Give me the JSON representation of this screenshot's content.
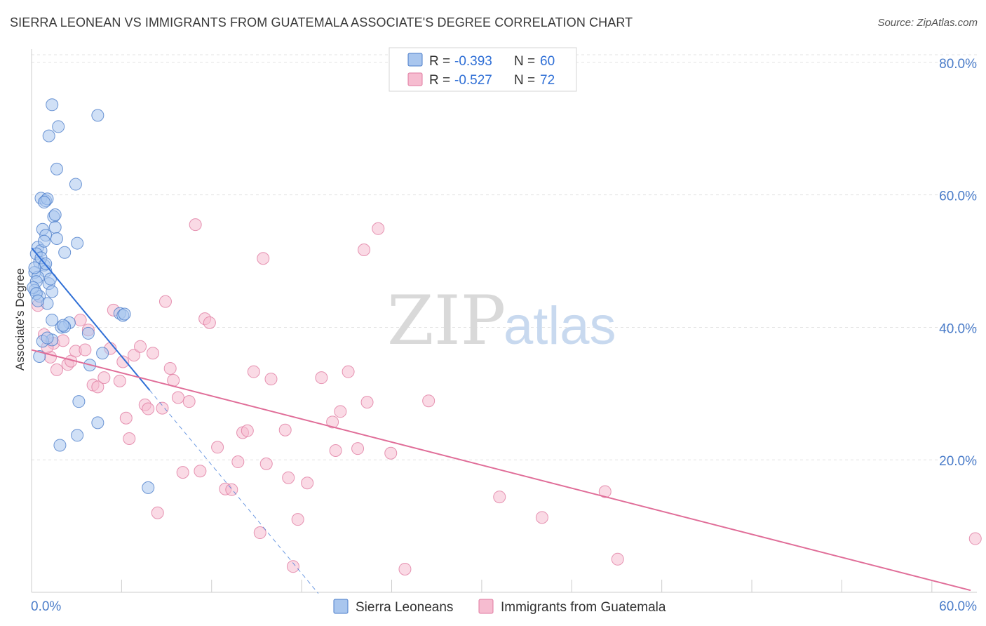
{
  "header": {
    "title": "SIERRA LEONEAN VS IMMIGRANTS FROM GUATEMALA ASSOCIATE'S DEGREE CORRELATION CHART",
    "source": "Source: ZipAtlas.com"
  },
  "watermark": {
    "zip": "ZIP",
    "atlas": "atlas"
  },
  "colors": {
    "blue": "#4a7cc9",
    "blue_fill": "#a9c6ee",
    "blue_line": "#2f6fd6",
    "pink": "#e07aa0",
    "pink_fill": "#f6bcd0",
    "pink_line": "#e06d98",
    "grid": "#e3e3e3",
    "axis_text": "#4a7cc9"
  },
  "legend": {
    "rows": [
      {
        "r_label": "R = ",
        "r_value": "-0.393",
        "n_label": "N = ",
        "n_value": "60"
      },
      {
        "r_label": "R = ",
        "r_value": "-0.527",
        "n_label": "N = ",
        "n_value": "72"
      }
    ]
  },
  "chart_data": {
    "type": "scatter",
    "title": "SIERRA LEONEAN VS IMMIGRANTS FROM GUATEMALA ASSOCIATE'S DEGREE CORRELATION CHART",
    "xlabel": "",
    "ylabel": "Associate's Degree",
    "xlim": [
      0,
      60
    ],
    "ylim": [
      0,
      82
    ],
    "x_tick_labels": [
      "0.0%",
      "60.0%"
    ],
    "y_ticks": [
      20,
      40,
      60,
      80
    ],
    "y_tick_labels": [
      "20.0%",
      "40.0%",
      "60.0%",
      "80.0%"
    ],
    "grid": true,
    "legend_position": "bottom",
    "series": [
      {
        "name": "Sierra Leoneans",
        "R": -0.393,
        "N": 60,
        "trend": {
          "x0": 0,
          "y0": 52.0,
          "x1": 7.5,
          "y1": 30.5,
          "dash_to_x": 18.2
        },
        "points": [
          [
            1.3,
            73.6
          ],
          [
            1.7,
            70.3
          ],
          [
            4.2,
            72.0
          ],
          [
            1.1,
            68.9
          ],
          [
            1.6,
            63.9
          ],
          [
            2.8,
            61.6
          ],
          [
            0.6,
            59.5
          ],
          [
            0.9,
            59.1
          ],
          [
            1.0,
            59.4
          ],
          [
            0.8,
            58.9
          ],
          [
            1.4,
            56.7
          ],
          [
            1.5,
            55.1
          ],
          [
            0.7,
            54.8
          ],
          [
            0.9,
            53.9
          ],
          [
            1.6,
            53.4
          ],
          [
            2.9,
            52.7
          ],
          [
            0.4,
            52.1
          ],
          [
            0.6,
            51.6
          ],
          [
            2.1,
            51.3
          ],
          [
            0.3,
            51.1
          ],
          [
            0.5,
            49.8
          ],
          [
            0.8,
            49.4
          ],
          [
            0.9,
            48.5
          ],
          [
            0.2,
            48.3
          ],
          [
            0.4,
            47.6
          ],
          [
            0.3,
            46.9
          ],
          [
            1.1,
            46.6
          ],
          [
            0.2,
            45.6
          ],
          [
            1.3,
            45.4
          ],
          [
            0.5,
            44.7
          ],
          [
            1.0,
            43.6
          ],
          [
            5.6,
            42.1
          ],
          [
            5.8,
            41.8
          ],
          [
            1.3,
            41.1
          ],
          [
            2.4,
            40.7
          ],
          [
            1.9,
            40.0
          ],
          [
            2.1,
            40.1
          ],
          [
            3.6,
            39.1
          ],
          [
            1.3,
            38.1
          ],
          [
            0.7,
            37.9
          ],
          [
            4.5,
            36.1
          ],
          [
            0.5,
            35.6
          ],
          [
            3.7,
            34.3
          ],
          [
            3.0,
            28.8
          ],
          [
            4.2,
            25.6
          ],
          [
            2.9,
            23.7
          ],
          [
            1.8,
            22.2
          ],
          [
            7.4,
            15.8
          ],
          [
            0.1,
            46.0
          ],
          [
            0.2,
            49.0
          ],
          [
            0.6,
            50.5
          ],
          [
            0.3,
            45.1
          ],
          [
            1.2,
            47.3
          ],
          [
            0.8,
            53.0
          ],
          [
            1.5,
            57.0
          ],
          [
            0.4,
            44.0
          ],
          [
            0.9,
            49.6
          ],
          [
            2.0,
            40.3
          ],
          [
            5.9,
            42.0
          ],
          [
            1.0,
            38.4
          ]
        ]
      },
      {
        "name": "Immigrants from Guatemala",
        "R": -0.527,
        "N": 72,
        "trend": {
          "x0": 0,
          "y0": 36.6,
          "x1": 59.6,
          "y1": 0.3
        },
        "points": [
          [
            0.4,
            43.3
          ],
          [
            0.8,
            38.9
          ],
          [
            1.2,
            35.5
          ],
          [
            1.4,
            37.6
          ],
          [
            1.6,
            33.6
          ],
          [
            2.0,
            38.0
          ],
          [
            2.3,
            34.4
          ],
          [
            2.5,
            34.9
          ],
          [
            2.8,
            36.4
          ],
          [
            3.1,
            41.1
          ],
          [
            3.4,
            36.6
          ],
          [
            3.6,
            39.6
          ],
          [
            3.9,
            31.3
          ],
          [
            4.2,
            31.0
          ],
          [
            4.6,
            32.4
          ],
          [
            5.0,
            36.8
          ],
          [
            5.2,
            42.6
          ],
          [
            5.6,
            31.9
          ],
          [
            5.8,
            34.8
          ],
          [
            6.0,
            26.3
          ],
          [
            6.2,
            23.2
          ],
          [
            6.5,
            35.8
          ],
          [
            6.9,
            37.1
          ],
          [
            7.2,
            28.3
          ],
          [
            7.4,
            27.7
          ],
          [
            7.7,
            36.1
          ],
          [
            8.0,
            12.0
          ],
          [
            8.3,
            27.8
          ],
          [
            8.5,
            43.9
          ],
          [
            8.8,
            33.8
          ],
          [
            9.0,
            32.0
          ],
          [
            9.3,
            29.4
          ],
          [
            9.6,
            18.1
          ],
          [
            10.0,
            28.8
          ],
          [
            10.4,
            55.5
          ],
          [
            10.7,
            18.3
          ],
          [
            11.0,
            41.3
          ],
          [
            11.3,
            40.7
          ],
          [
            11.8,
            21.9
          ],
          [
            12.3,
            15.6
          ],
          [
            12.7,
            15.5
          ],
          [
            13.1,
            19.7
          ],
          [
            13.4,
            24.1
          ],
          [
            13.7,
            24.4
          ],
          [
            14.1,
            33.3
          ],
          [
            14.5,
            9.0
          ],
          [
            14.7,
            50.4
          ],
          [
            14.9,
            19.4
          ],
          [
            15.2,
            32.2
          ],
          [
            16.1,
            24.5
          ],
          [
            16.3,
            17.3
          ],
          [
            16.6,
            3.9
          ],
          [
            16.9,
            11.0
          ],
          [
            17.5,
            16.5
          ],
          [
            18.4,
            32.4
          ],
          [
            19.1,
            25.7
          ],
          [
            19.3,
            21.4
          ],
          [
            19.6,
            27.3
          ],
          [
            20.1,
            33.3
          ],
          [
            20.7,
            21.7
          ],
          [
            21.1,
            51.7
          ],
          [
            21.3,
            28.7
          ],
          [
            22.0,
            54.9
          ],
          [
            22.8,
            21.0
          ],
          [
            23.7,
            3.5
          ],
          [
            25.2,
            28.9
          ],
          [
            29.7,
            14.4
          ],
          [
            32.4,
            11.3
          ],
          [
            36.4,
            15.2
          ],
          [
            37.2,
            5.0
          ],
          [
            59.9,
            8.1
          ],
          [
            1.0,
            37.0
          ]
        ]
      }
    ]
  }
}
